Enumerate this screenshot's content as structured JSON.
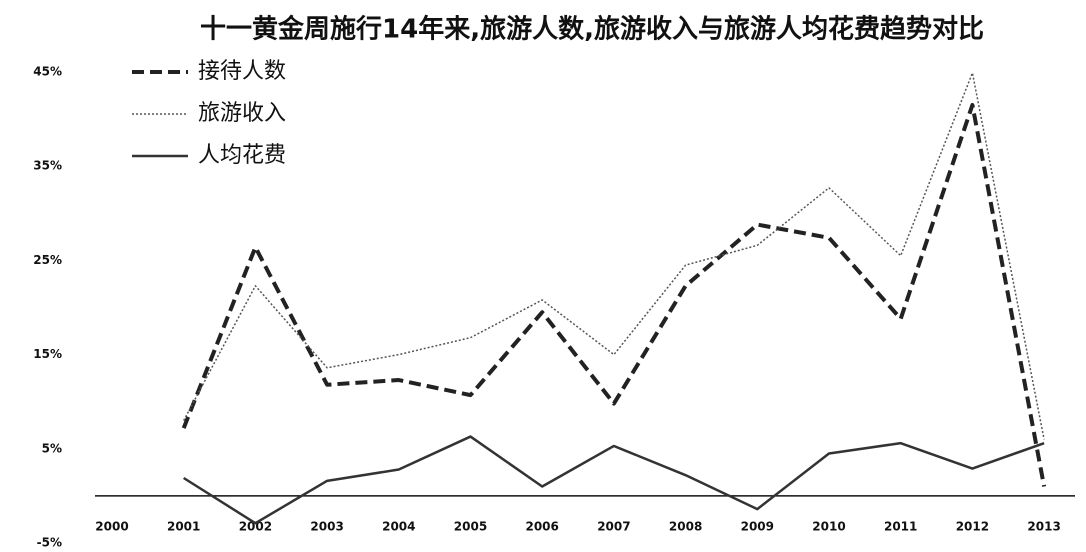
{
  "chart_data": {
    "type": "line",
    "title": "十一黄金周施行14年来,旅游人数,旅游收入与旅游人均花费趋势对比",
    "categories": [
      "2000",
      "2001",
      "2002",
      "2003",
      "2004",
      "2005",
      "2006",
      "2007",
      "2008",
      "2009",
      "2010",
      "2011",
      "2012",
      "2013"
    ],
    "series": [
      {
        "name": "接待人数",
        "color": "#222222",
        "style": "dashed",
        "values": [
          null,
          7.2,
          26.4,
          11.8,
          12.3,
          10.7,
          19.5,
          9.8,
          22.3,
          28.8,
          27.4,
          18.8,
          41.5,
          1.0
        ]
      },
      {
        "name": "旅游收入",
        "color": "#555555",
        "style": "dotted",
        "values": [
          null,
          8,
          22.3,
          13.6,
          15,
          16.8,
          20.8,
          15,
          24.5,
          26.6,
          32.7,
          25.5,
          44.9,
          6
        ]
      },
      {
        "name": "人均花费",
        "color": "#333333",
        "style": "solid",
        "values": [
          null,
          1.9,
          -2.9,
          1.6,
          2.8,
          6.3,
          1.0,
          5.3,
          2.2,
          -1.4,
          4.5,
          5.6,
          2.9,
          5.6
        ]
      }
    ],
    "ylim": [
      -5,
      45
    ],
    "yticks": [
      {
        "value": -5,
        "label": "-5%"
      },
      {
        "value": 5,
        "label": "5%"
      },
      {
        "value": 15,
        "label": "15%"
      },
      {
        "value": 25,
        "label": "25%"
      },
      {
        "value": 35,
        "label": "35%"
      },
      {
        "value": 45,
        "label": "45%"
      }
    ],
    "grid": false,
    "legend": "top-left"
  }
}
